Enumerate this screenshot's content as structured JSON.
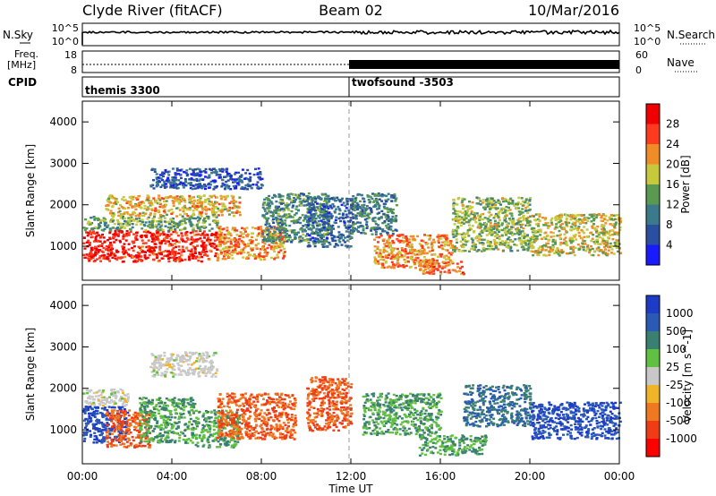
{
  "header": {
    "station": "Clyde River (fitACF)",
    "beam": "Beam 02",
    "date": "10/Mar/2016"
  },
  "time_axis": {
    "label": "Time UT",
    "ticks": [
      "00:00",
      "04:00",
      "08:00",
      "12:00",
      "16:00",
      "20:00",
      "00:00"
    ],
    "range_hours": [
      0,
      24
    ]
  },
  "nsky_panel": {
    "left_label": "N.Sky",
    "right_label": "N.Search",
    "left_ticks": [
      "10^5",
      "10^0"
    ],
    "right_ticks": [
      "10^5",
      "10^0"
    ]
  },
  "freq_panel": {
    "left_label_1": "Freq.",
    "left_label_2": "[MHz]",
    "right_label": "Nave",
    "left_ticks": [
      "18",
      "8"
    ],
    "right_ticks": [
      "60",
      "0"
    ]
  },
  "cpid_panel": {
    "label": "CPID",
    "modes": [
      "themis 3300",
      "twofsound -3503"
    ],
    "mode_switch_hour": 12.0
  },
  "range_axis": {
    "label": "Slant Range [km]",
    "ticks": [
      "1000",
      "2000",
      "3000",
      "4000"
    ],
    "range_km": [
      180,
      4500
    ]
  },
  "power_colorbar": {
    "title": "Power [dB]",
    "labels": [
      "4",
      "8",
      "12",
      "16",
      "20",
      "24",
      "28"
    ],
    "colors": [
      "#1a1aff",
      "#2a4fa0",
      "#3a7a8a",
      "#5a9a50",
      "#c8c83c",
      "#f08c28",
      "#ff3a1e",
      "#f00000"
    ]
  },
  "velocity_colorbar": {
    "title": "Velocity [m s^-1]",
    "labels": [
      "1000",
      "500",
      "100",
      "25",
      "-25",
      "-100",
      "-500",
      "-1000"
    ],
    "colors": [
      "#1c3cc8",
      "#2a5ab4",
      "#3a8070",
      "#60c040",
      "#c8c8c8",
      "#f0b428",
      "#f07820",
      "#f03c14",
      "#ff0000"
    ]
  },
  "chart_data": {
    "type": "heatmap",
    "title": "Clyde River (fitACF)",
    "xlabel": "Time UT",
    "ylabel": "Slant Range [km]",
    "xlim": [
      0,
      24
    ],
    "ylim": [
      180,
      4500
    ],
    "series": [
      {
        "name": "Power [dB]",
        "regions": [
          {
            "t": [
              0,
              6
            ],
            "r": [
              650,
              1400
            ],
            "value": 28
          },
          {
            "t": [
              0,
              6
            ],
            "r": [
              1400,
              1750
            ],
            "value": 14
          },
          {
            "t": [
              1,
              7
            ],
            "r": [
              1750,
              2250
            ],
            "value": 20
          },
          {
            "t": [
              6,
              9
            ],
            "r": [
              700,
              1500
            ],
            "value": 22
          },
          {
            "t": [
              8,
              11
            ],
            "r": [
              1100,
              2300
            ],
            "value": 12
          },
          {
            "t": [
              3,
              8
            ],
            "r": [
              2400,
              2900
            ],
            "value": 6
          },
          {
            "t": [
              10,
              12
            ],
            "r": [
              1000,
              2200
            ],
            "value": 8
          },
          {
            "t": [
              12,
              14
            ],
            "r": [
              1300,
              2300
            ],
            "value": 10
          },
          {
            "t": [
              13,
              16.5
            ],
            "r": [
              500,
              1300
            ],
            "value": 22
          },
          {
            "t": [
              15,
              17
            ],
            "r": [
              350,
              650
            ],
            "value": 24
          },
          {
            "t": [
              16.5,
              20
            ],
            "r": [
              900,
              2200
            ],
            "value": 16
          },
          {
            "t": [
              20,
              24
            ],
            "r": [
              800,
              1800
            ],
            "value": 18
          }
        ]
      },
      {
        "name": "Velocity [m s^-1]",
        "regions": [
          {
            "t": [
              0,
              2
            ],
            "r": [
              700,
              1600
            ],
            "value": 1000
          },
          {
            "t": [
              0,
              2
            ],
            "r": [
              1600,
              2000
            ],
            "value": 0
          },
          {
            "t": [
              1,
              3
            ],
            "r": [
              600,
              1500
            ],
            "value": -500
          },
          {
            "t": [
              2.5,
              5
            ],
            "r": [
              700,
              1800
            ],
            "value": 100
          },
          {
            "t": [
              3,
              6
            ],
            "r": [
              2300,
              2900
            ],
            "value": 0
          },
          {
            "t": [
              5,
              7
            ],
            "r": [
              600,
              1500
            ],
            "value": 100
          },
          {
            "t": [
              6,
              9.5
            ],
            "r": [
              800,
              1900
            ],
            "value": -500
          },
          {
            "t": [
              10,
              12
            ],
            "r": [
              1000,
              2300
            ],
            "value": -500
          },
          {
            "t": [
              12.5,
              16
            ],
            "r": [
              900,
              1900
            ],
            "value": 100
          },
          {
            "t": [
              15,
              18
            ],
            "r": [
              400,
              900
            ],
            "value": 100
          },
          {
            "t": [
              17,
              20
            ],
            "r": [
              1100,
              2100
            ],
            "value": 500
          },
          {
            "t": [
              20,
              24
            ],
            "r": [
              800,
              1700
            ],
            "value": 1000
          }
        ]
      }
    ]
  }
}
